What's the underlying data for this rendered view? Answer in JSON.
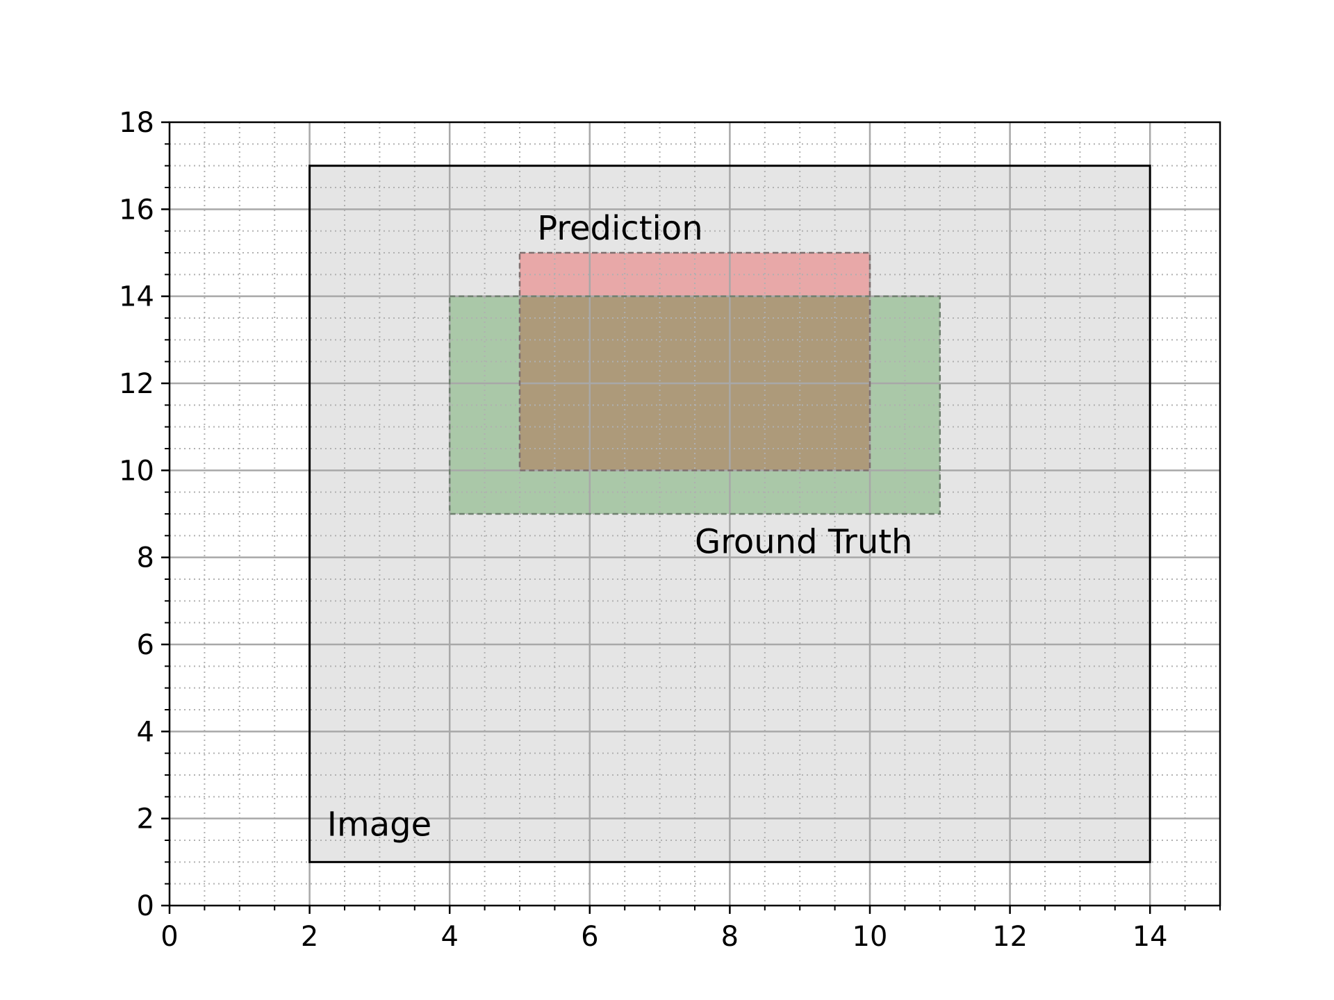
{
  "chart_data": {
    "type": "rectangles",
    "title": "",
    "xlabel": "",
    "ylabel": "",
    "xlim": [
      0,
      15
    ],
    "ylim": [
      0,
      18
    ],
    "xticks": [
      0,
      2,
      4,
      6,
      8,
      10,
      12,
      14
    ],
    "yticks": [
      0,
      2,
      4,
      6,
      8,
      10,
      12,
      14,
      16,
      18
    ],
    "minor_tick_step": 0.5,
    "grid": {
      "major": true,
      "minor": true,
      "minor_style": "dotted"
    },
    "boxes": [
      {
        "label": "Image",
        "x0": 2,
        "y0": 1,
        "x1": 14,
        "y1": 17,
        "fill": "#e5e5e5",
        "edge": "#000000",
        "style": "solid",
        "label_x": 2.25,
        "label_y": 1.6
      },
      {
        "label": "Ground Truth",
        "x0": 4,
        "y0": 9,
        "x1": 11,
        "y1": 14,
        "fill": "#aac8a8",
        "edge": "#6f7f6f",
        "style": "dashed",
        "label_x": 7.5,
        "label_y": 8.1
      },
      {
        "label": "Prediction",
        "x0": 5,
        "y0": 10,
        "x1": 10,
        "y1": 15,
        "fill": "#e8a8a8",
        "edge": "#7f6f6f",
        "style": "dashed",
        "label_x": 5.25,
        "label_y": 15.3
      }
    ],
    "overlap_fill": "#ad9a7a"
  }
}
